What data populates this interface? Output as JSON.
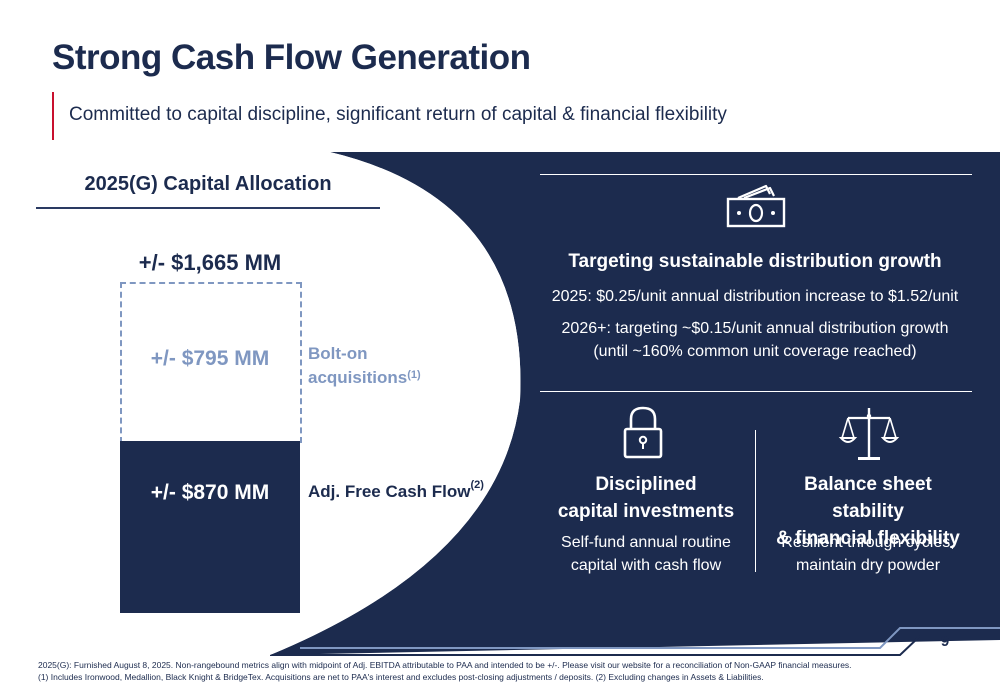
{
  "header": {
    "title": "Strong Cash Flow Generation",
    "subtitle": "Committed to capital discipline, significant return of capital & financial flexibility"
  },
  "allocation": {
    "title": "2025(G) Capital Allocation",
    "total": "+/- $1,665 MM",
    "bolt_on": {
      "value": "+/- $795 MM",
      "label_line1": "Bolt-on",
      "label_line2": "acquisitions",
      "note": "(1)"
    },
    "free_cash_flow": {
      "value": "+/- $870 MM",
      "label": "Adj. Free Cash Flow",
      "note": "(2)"
    }
  },
  "distribution": {
    "icon": "money-icon",
    "heading": "Targeting sustainable distribution growth",
    "line1": "2025: $0.25/unit annual distribution increase to $1.52/unit",
    "line2": "2026+: targeting ~$0.15/unit annual distribution growth",
    "line3": "(until ~160% common unit coverage reached)"
  },
  "investments": {
    "icon": "lock-icon",
    "heading_line1": "Disciplined",
    "heading_line2": "capital investments",
    "body_line1": "Self-fund annual routine",
    "body_line2": "capital with cash flow"
  },
  "balance_sheet": {
    "icon": "scales-icon",
    "heading_line1": "Balance sheet stability",
    "heading_line2": "& financial flexibility",
    "body_line1": "Resilient through cycles;",
    "body_line2": "maintain dry powder"
  },
  "page_number": "9",
  "footnotes": {
    "line1": "2025(G): Furnished August 8, 2025. Non-rangebound metrics align with midpoint of Adj. EBITDA attributable to PAA and intended to be +/-.  Please visit our website for a reconciliation of Non-GAAP financial measures.",
    "line2": "(1) Includes Ironwood, Medallion, Black Knight & BridgeTex. Acquisitions are net to PAA's interest and excludes post-closing adjustments / deposits. (2) Excluding changes in Assets & Liabilities."
  },
  "colors": {
    "navy": "#1c2b4e",
    "light_blue": "#7f97c1",
    "accent_red": "#c8102e",
    "white": "#ffffff"
  }
}
